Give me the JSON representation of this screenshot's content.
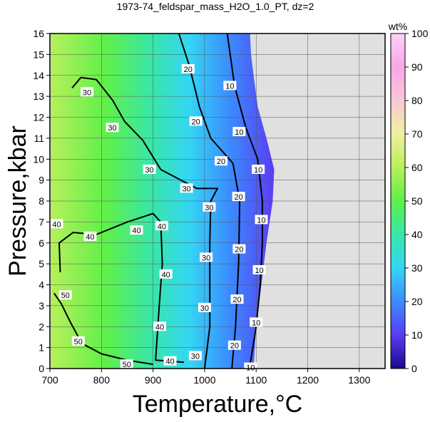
{
  "chart_data": {
    "type": "heatmap",
    "title": "1973-74_feldspar_mass_H2O_1.0_PT, dz=2",
    "xlabel": "Temperature,°C",
    "ylabel": "Pressure,kbar",
    "xlim": [
      700,
      1350
    ],
    "ylim": [
      0,
      16
    ],
    "x_ticks": [
      700,
      800,
      900,
      1000,
      1100,
      1200,
      1300
    ],
    "y_ticks": [
      0,
      1,
      2,
      3,
      4,
      5,
      6,
      7,
      8,
      9,
      10,
      11,
      12,
      13,
      14,
      15,
      16
    ],
    "grid": true,
    "colorbar": {
      "label": "wt%",
      "range": [
        0,
        100
      ],
      "ticks": [
        0,
        10,
        20,
        30,
        40,
        50,
        60,
        70,
        80,
        90,
        100
      ],
      "colors": [
        "#1a0a8c",
        "#5a3cf2",
        "#3b8cff",
        "#34d6f4",
        "#39e6a8",
        "#5ef04a",
        "#b6f05a",
        "#f0f0a0",
        "#f8c8d8",
        "#f7a6e6",
        "#ffd2f8"
      ]
    },
    "no_data_region_color": "#e0e0e0",
    "contour_interval": 2,
    "major_contours": [
      {
        "level": 10,
        "points": [
          [
            1087,
            0
          ],
          [
            1100,
            2
          ],
          [
            1108,
            4
          ],
          [
            1112,
            6
          ],
          [
            1112,
            8
          ],
          [
            1103,
            10
          ],
          [
            1080,
            11.5
          ],
          [
            1058,
            13.5
          ],
          [
            1044,
            16
          ]
        ],
        "labels": [
          {
            "text": "10",
            "x": 1089,
            "y": 0.05
          },
          {
            "text": "10",
            "x": 1100,
            "y": 2.2
          },
          {
            "text": "10",
            "x": 1106,
            "y": 4.7
          },
          {
            "text": "10",
            "x": 1110,
            "y": 7.1
          },
          {
            "text": "10",
            "x": 1104,
            "y": 9.5
          },
          {
            "text": "10",
            "x": 1067,
            "y": 11.3
          },
          {
            "text": "10",
            "x": 1049,
            "y": 13.5
          }
        ]
      },
      {
        "level": 20,
        "points": [
          [
            1053,
            0
          ],
          [
            1060,
            2
          ],
          [
            1066,
            5
          ],
          [
            1068,
            8
          ],
          [
            1055,
            9.8
          ],
          [
            1012,
            11
          ],
          [
            990,
            12.5
          ],
          [
            970,
            14.5
          ],
          [
            950,
            16
          ]
        ],
        "labels": [
          {
            "text": "20",
            "x": 1058,
            "y": 1.1
          },
          {
            "text": "20",
            "x": 1063,
            "y": 3.3
          },
          {
            "text": "20",
            "x": 1067,
            "y": 5.7
          },
          {
            "text": "20",
            "x": 1066,
            "y": 8.2
          },
          {
            "text": "20",
            "x": 1032,
            "y": 9.9
          },
          {
            "text": "20",
            "x": 983,
            "y": 11.8
          },
          {
            "text": "20",
            "x": 968,
            "y": 14.3
          }
        ]
      },
      {
        "level": 30,
        "points": [
          [
            1000,
            0
          ],
          [
            1010,
            2
          ],
          [
            1010,
            4
          ],
          [
            1010,
            6
          ],
          [
            1012,
            8
          ],
          [
            1025,
            8.6
          ],
          [
            985,
            8.6
          ],
          [
            915,
            9.5
          ],
          [
            880,
            10.9
          ],
          [
            845,
            11.8
          ],
          [
            822,
            12.8
          ],
          [
            790,
            13.8
          ],
          [
            760,
            13.9
          ],
          [
            743,
            13.4
          ]
        ],
        "labels": [
          {
            "text": "30",
            "x": 982,
            "y": 0.6
          },
          {
            "text": "30",
            "x": 1000,
            "y": 2.9
          },
          {
            "text": "30",
            "x": 1003,
            "y": 5.3
          },
          {
            "text": "30",
            "x": 1009,
            "y": 7.7
          },
          {
            "text": "30",
            "x": 965,
            "y": 8.6
          },
          {
            "text": "30",
            "x": 893,
            "y": 9.5
          },
          {
            "text": "30",
            "x": 821,
            "y": 11.5
          },
          {
            "text": "30",
            "x": 772,
            "y": 13.2
          }
        ]
      },
      {
        "level": 40,
        "points": [
          [
            720,
            4.6
          ],
          [
            718,
            6
          ],
          [
            745,
            6.5
          ],
          [
            790,
            6.4
          ],
          [
            850,
            7
          ],
          [
            900,
            7.4
          ],
          [
            915,
            7
          ],
          [
            918,
            5
          ],
          [
            912,
            3
          ],
          [
            905,
            0.4
          ],
          [
            960,
            0.3
          ]
        ],
        "labels": [
          {
            "text": "40",
            "x": 713,
            "y": 6.9
          },
          {
            "text": "40",
            "x": 778,
            "y": 6.3
          },
          {
            "text": "40",
            "x": 868,
            "y": 6.6
          },
          {
            "text": "40",
            "x": 917,
            "y": 6.8
          },
          {
            "text": "40",
            "x": 925,
            "y": 4.5
          },
          {
            "text": "40",
            "x": 913,
            "y": 2
          },
          {
            "text": "40",
            "x": 933,
            "y": 0.35
          }
        ]
      },
      {
        "level": 50,
        "points": [
          [
            708,
            3.6
          ],
          [
            722,
            3.1
          ],
          [
            740,
            2.2
          ],
          [
            762,
            1.2
          ],
          [
            800,
            0.7
          ],
          [
            850,
            0.4
          ],
          [
            900,
            0.2
          ]
        ],
        "labels": [
          {
            "text": "50",
            "x": 730,
            "y": 3.5
          },
          {
            "text": "50",
            "x": 755,
            "y": 1.3
          },
          {
            "text": "50",
            "x": 849,
            "y": 0.2
          }
        ]
      }
    ]
  }
}
